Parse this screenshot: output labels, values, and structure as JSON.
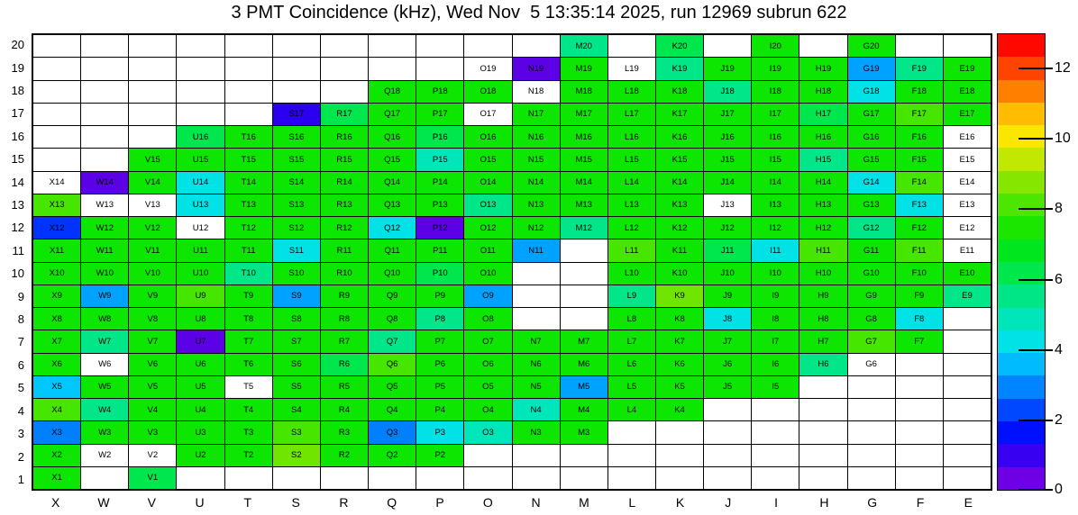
{
  "title": "3 PMT Coincidence (kHz), Wed Nov  5 13:35:14 2025, run 12969 subrun 622",
  "chart_data": {
    "type": "heatmap",
    "title": "3 PMT Coincidence (kHz), Wed Nov  5 13:35:14 2025, run 12969 subrun 622",
    "value_unit": "kHz",
    "x_labels": [
      "X",
      "W",
      "V",
      "U",
      "T",
      "S",
      "R",
      "Q",
      "P",
      "O",
      "N",
      "M",
      "L",
      "K",
      "J",
      "I",
      "H",
      "G",
      "F",
      "E"
    ],
    "y_labels": [
      "20",
      "19",
      "18",
      "17",
      "16",
      "15",
      "14",
      "13",
      "12",
      "11",
      "10",
      "9",
      "8",
      "7",
      "6",
      "5",
      "4",
      "3",
      "2",
      "1"
    ],
    "scale": {
      "min": 0,
      "max": 13,
      "ticks": [
        12,
        10,
        8,
        6,
        4,
        2,
        0
      ]
    },
    "palette": {
      "g": {
        "hex": "#0ce600",
        "approx_kHz": 7.5
      },
      "yg": {
        "hex": "#47e600",
        "approx_kHz": 8.2
      },
      "ch": {
        "hex": "#70e600",
        "approx_kHz": 8.8
      },
      "sg": {
        "hex": "#00e64d",
        "approx_kHz": 6.4
      },
      "tg": {
        "hex": "#00e689",
        "approx_kHz": 5.7
      },
      "tc": {
        "hex": "#00e6bb",
        "approx_kHz": 5.0
      },
      "cy": {
        "hex": "#00e2e6",
        "approx_kHz": 4.5
      },
      "cb": {
        "hex": "#00c8ff",
        "approx_kHz": 4.0
      },
      "lb": {
        "hex": "#00a2ff",
        "approx_kHz": 3.5
      },
      "db": {
        "hex": "#0080ff",
        "approx_kHz": 3.0
      },
      "rb": {
        "hex": "#0033ff",
        "approx_kHz": 2.2
      },
      "bl": {
        "hex": "#2b00f0",
        "approx_kHz": 1.2
      },
      "vi": {
        "hex": "#5c00e6",
        "approx_kHz": 0.5
      },
      "wh": {
        "hex": "#ffffff",
        "approx_kHz": null
      }
    },
    "cells": [
      [
        "",
        "",
        "",
        "",
        "",
        "",
        "",
        "",
        "",
        "",
        "",
        "M20:tg",
        "",
        "K20:sg",
        "",
        "I20:g",
        "",
        "G20:g",
        "",
        ""
      ],
      [
        "",
        "",
        "",
        "",
        "",
        "",
        "",
        "",
        "",
        "O19:wh",
        "N19:vi",
        "M19:g",
        "L19:wh",
        "K19:tg",
        "J19:g",
        "I19:g",
        "H19:g",
        "G19:lb",
        "F19:tg",
        "E19:g"
      ],
      [
        "",
        "",
        "",
        "",
        "",
        "",
        "",
        "Q18:g",
        "P18:g",
        "O18:g",
        "N18:wh",
        "M18:g",
        "L18:g",
        "K18:g",
        "J18:tg",
        "I18:g",
        "H18:g",
        "G18:cy",
        "F18:g",
        "E18:g"
      ],
      [
        "",
        "",
        "",
        "",
        "",
        "S17:bl",
        "R17:sg",
        "Q17:g",
        "P17:g",
        "O17:wh",
        "N17:g",
        "M17:g",
        "L17:g",
        "K17:g",
        "J17:g",
        "I17:g",
        "H17:sg",
        "G17:g",
        "F17:yg",
        "E17:g"
      ],
      [
        "",
        "",
        "",
        "U16:sg",
        "T16:g",
        "S16:g",
        "R16:g",
        "Q16:g",
        "P16:sg",
        "O16:g",
        "N16:g",
        "M16:g",
        "L16:g",
        "K16:g",
        "J16:g",
        "I16:g",
        "H16:g",
        "G16:g",
        "F16:g",
        "E16:wh"
      ],
      [
        "",
        "",
        "V15:g",
        "U15:g",
        "T15:g",
        "S15:g",
        "R15:g",
        "Q15:g",
        "P15:tc",
        "O15:g",
        "N15:g",
        "M15:g",
        "L15:g",
        "K15:g",
        "J15:g",
        "I15:g",
        "H15:tg",
        "G15:g",
        "F15:g",
        "E15:wh"
      ],
      [
        "X14:wh",
        "W14:vi",
        "V14:g",
        "U14:cy",
        "T14:g",
        "S14:g",
        "R14:g",
        "Q14:g",
        "P14:g",
        "O14:g",
        "N14:g",
        "M14:g",
        "L14:g",
        "K14:g",
        "J14:g",
        "I14:g",
        "H14:g",
        "G14:cy",
        "F14:yg",
        "E14:wh"
      ],
      [
        "X13:yg",
        "W13:wh",
        "V13:wh",
        "U13:cy",
        "T13:g",
        "S13:g",
        "R13:g",
        "Q13:g",
        "P13:g",
        "O13:tg",
        "N13:g",
        "M13:g",
        "L13:g",
        "K13:g",
        "J13:wh",
        "I13:g",
        "H13:g",
        "G13:g",
        "F13:cy",
        "E13:wh"
      ],
      [
        "X12:rb",
        "W12:g",
        "V12:g",
        "U12:wh",
        "T12:g",
        "S12:g",
        "R12:g",
        "Q12:cy",
        "P12:vi",
        "O12:g",
        "N12:g",
        "M12:tg",
        "L12:g",
        "K12:g",
        "J12:g",
        "I12:g",
        "H12:g",
        "G12:tg",
        "F12:g",
        "E12:wh"
      ],
      [
        "X11:g",
        "W11:g",
        "V11:g",
        "U11:g",
        "T11:g",
        "S11:cy",
        "R11:g",
        "Q11:g",
        "P11:g",
        "O11:g",
        "N11:lb",
        "",
        "L11:yg",
        "K11:g",
        "J11:sg",
        "I11:cy",
        "H11:yg",
        "G11:g",
        "F11:yg",
        "E11:wh"
      ],
      [
        "X10:g",
        "W10:g",
        "V10:g",
        "U10:g",
        "T10:tg",
        "S10:g",
        "R10:g",
        "Q10:g",
        "P10:sg",
        "O10:g",
        "",
        "",
        "L10:g",
        "K10:g",
        "J10:g",
        "I10:g",
        "H10:g",
        "G10:g",
        "F10:g",
        "E10:g"
      ],
      [
        "X9:g",
        "W9:lb",
        "V9:g",
        "U9:yg",
        "T9:g",
        "S9:lb",
        "R9:g",
        "Q9:g",
        "P9:g",
        "O9:lb",
        "",
        "",
        "L9:tg",
        "K9:ch",
        "J9:g",
        "I9:g",
        "H9:g",
        "G9:g",
        "F9:g",
        "E9:tg"
      ],
      [
        "X8:g",
        "W8:g",
        "V8:g",
        "U8:g",
        "T8:g",
        "S8:g",
        "R8:g",
        "Q8:g",
        "P8:tg",
        "O8:g",
        "",
        "",
        "L8:g",
        "K8:g",
        "J8:cy",
        "I8:g",
        "H8:g",
        "G8:g",
        "F8:cy",
        ""
      ],
      [
        "X7:g",
        "W7:tg",
        "V7:g",
        "U7:vi",
        "T7:g",
        "S7:g",
        "R7:g",
        "Q7:tg",
        "P7:g",
        "O7:g",
        "N7:g",
        "M7:g",
        "L7:g",
        "K7:g",
        "J7:g",
        "I7:g",
        "H7:g",
        "G7:yg",
        "F7:g",
        ""
      ],
      [
        "X6:g",
        "W6:wh",
        "V6:g",
        "U6:g",
        "T6:g",
        "S6:g",
        "R6:sg",
        "Q6:yg",
        "P6:g",
        "O6:g",
        "N6:g",
        "M6:g",
        "L6:g",
        "K6:g",
        "J6:g",
        "I6:g",
        "H6:tg",
        "G6:wh",
        "",
        ""
      ],
      [
        "X5:cb",
        "W5:g",
        "V5:g",
        "U5:g",
        "T5:wh",
        "S5:g",
        "R5:g",
        "Q5:g",
        "P5:g",
        "O5:g",
        "N5:g",
        "M5:lb",
        "L5:g",
        "K5:g",
        "J5:g",
        "I5:g",
        "",
        "",
        "",
        ""
      ],
      [
        "X4:yg",
        "W4:tg",
        "V4:g",
        "U4:g",
        "T4:g",
        "S4:g",
        "R4:g",
        "Q4:g",
        "P4:g",
        "O4:g",
        "N4:tc",
        "M4:g",
        "L4:g",
        "K4:g",
        "",
        "",
        "",
        "",
        "",
        ""
      ],
      [
        "X3:db",
        "W3:g",
        "V3:g",
        "U3:g",
        "T3:g",
        "S3:yg",
        "R3:g",
        "Q3:db",
        "P3:cy",
        "O3:tc",
        "N3:g",
        "M3:g",
        "",
        "",
        "",
        "",
        "",
        "",
        "",
        ""
      ],
      [
        "X2:g",
        "W2:wh",
        "V2:wh",
        "U2:g",
        "T2:g",
        "S2:ch",
        "R2:g",
        "Q2:g",
        "P2:g",
        "",
        "",
        "",
        "",
        "",
        "",
        "",
        "",
        "",
        "",
        ""
      ],
      [
        "X1:g",
        "",
        "V1:sg",
        "",
        "",
        "",
        "",
        "",
        "",
        "",
        "",
        "",
        "",
        "",
        "",
        "",
        "",
        "",
        "",
        ""
      ]
    ],
    "colorbar_colors_top_to_bottom": [
      "#ff0800",
      "#ff4400",
      "#ff8000",
      "#ffbc00",
      "#fbe600",
      "#c0e800",
      "#86e600",
      "#4de600",
      "#1ae600",
      "#00e61e",
      "#00e64d",
      "#00e687",
      "#00e6bb",
      "#00e2e6",
      "#00bcff",
      "#0084ff",
      "#0048ff",
      "#0010ff",
      "#3700f0",
      "#6f00e6"
    ],
    "legend_position": "right",
    "grid": true
  }
}
